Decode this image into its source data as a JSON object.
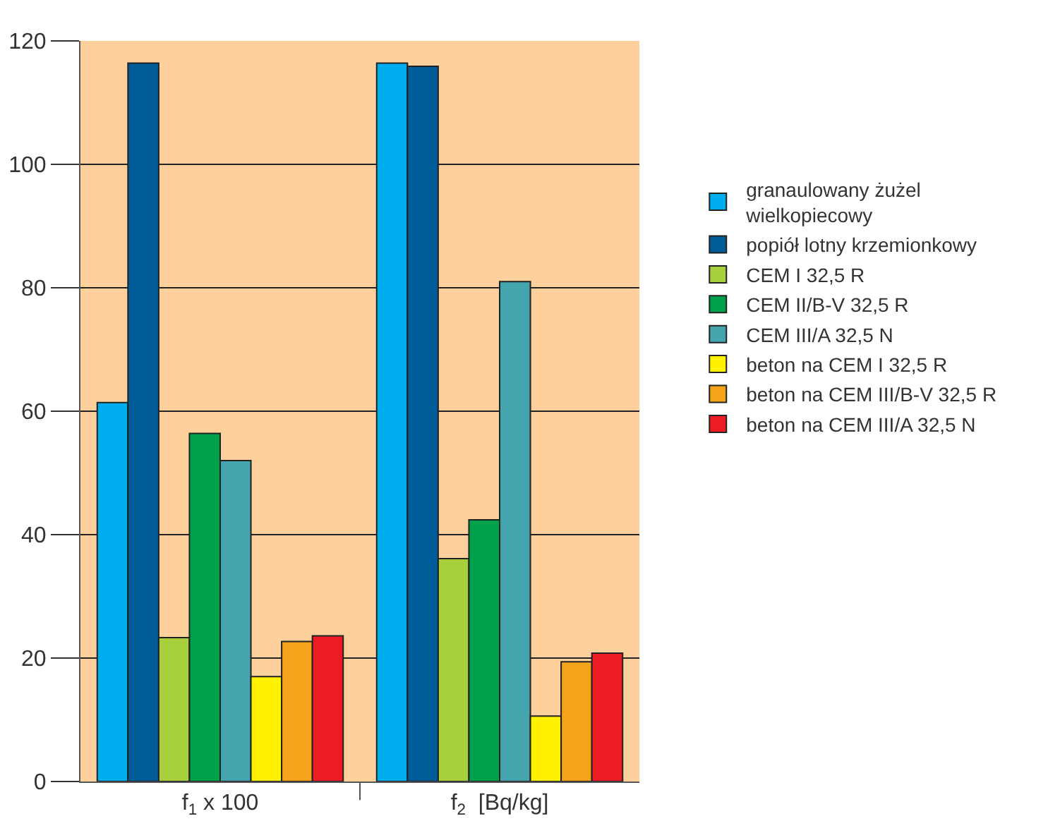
{
  "chart_data": {
    "type": "bar",
    "categories": [
      "f$_{1}$ x 100",
      "f$_{2}$  [Bq/kg]"
    ],
    "series": [
      {
        "name": "granaulowany żużel wielkopiecowy",
        "color": "#00adee",
        "values": [
          61.4,
          116.4
        ]
      },
      {
        "name": "popiół lotny krzemionkowy",
        "color": "#005b99",
        "values": [
          116.4,
          115.9
        ]
      },
      {
        "name": "CEM I 32,5 R",
        "color": "#a8cf3c",
        "values": [
          23.3,
          36.1
        ]
      },
      {
        "name": "CEM II/B-V 32,5 R",
        "color": "#00a14b",
        "values": [
          56.4,
          42.4
        ]
      },
      {
        "name": "CEM III/A 32,5 N",
        "color": "#45a5ae",
        "values": [
          52.0,
          81.0
        ]
      },
      {
        "name": "beton na CEM I 32,5 R",
        "color": "#fff100",
        "values": [
          17.0,
          10.6
        ]
      },
      {
        "name": "beton na CEM III/B-V 32,5 R",
        "color": "#f6a31c",
        "values": [
          22.7,
          19.4
        ]
      },
      {
        "name": "beton na CEM III/A 32,5 N",
        "color": "#ed1c24",
        "values": [
          23.6,
          20.8
        ]
      }
    ],
    "ylim": [
      0,
      120
    ],
    "yticks": [
      0,
      20,
      40,
      60,
      80,
      100,
      120
    ],
    "grid": "y",
    "legend": "right"
  }
}
